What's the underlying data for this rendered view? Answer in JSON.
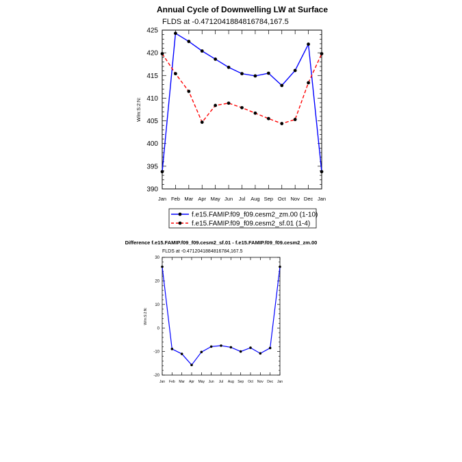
{
  "chart_data": [
    {
      "type": "line",
      "title": "Annual Cycle of Downwelling LW at Surface",
      "subtitle": "FLDS at -0.4712041884816784,167.5",
      "ylabel": "W/m:S:2:N:",
      "ylim": [
        390,
        425
      ],
      "yticks": [
        390,
        395,
        400,
        405,
        410,
        415,
        420,
        425
      ],
      "categories": [
        "Jan",
        "Feb",
        "Mar",
        "Apr",
        "May",
        "Jun",
        "Jul",
        "Aug",
        "Sep",
        "Oct",
        "Nov",
        "Dec",
        "Jan"
      ],
      "legend_position": "bottom",
      "series": [
        {
          "name": "f.e15.FAMIP.f09_f09.cesm2_zm.00 (1-10)",
          "color": "#0000ff",
          "style": "solid",
          "values": [
            393.8,
            424.3,
            422.5,
            420.4,
            418.6,
            416.8,
            415.4,
            414.9,
            415.5,
            412.8,
            416.1,
            421.9,
            393.8
          ]
        },
        {
          "name": "f.e15.FAMIP.f09_f09.cesm2_sf.01 (1-4)",
          "color": "#ff0000",
          "style": "dashed",
          "values": [
            419.8,
            415.4,
            411.5,
            404.7,
            408.4,
            408.9,
            407.9,
            406.7,
            405.5,
            404.4,
            405.3,
            413.4,
            419.8
          ]
        }
      ]
    },
    {
      "type": "line",
      "title": "Difference f.e15.FAMIP.f09_f09.cesm2_sf.01 - f.e15.FAMIP.f09_f09.cesm2_zm.00",
      "subtitle": "FLDS at -0.4712041884816784,167.5",
      "ylabel": "W/m:S:2:N:",
      "ylim": [
        -20,
        30
      ],
      "yticks": [
        -20,
        -10,
        0,
        10,
        20,
        30
      ],
      "categories": [
        "Jan",
        "Feb",
        "Mar",
        "Apr",
        "May",
        "Jun",
        "Jul",
        "Aug",
        "Sep",
        "Oct",
        "Nov",
        "Dec",
        "Jan"
      ],
      "series": [
        {
          "color": "#0000ff",
          "style": "solid",
          "values": [
            26.0,
            -8.9,
            -11.0,
            -15.7,
            -10.2,
            -7.9,
            -7.5,
            -8.2,
            -10.0,
            -8.4,
            -10.8,
            -8.5,
            26.0
          ]
        }
      ]
    }
  ]
}
